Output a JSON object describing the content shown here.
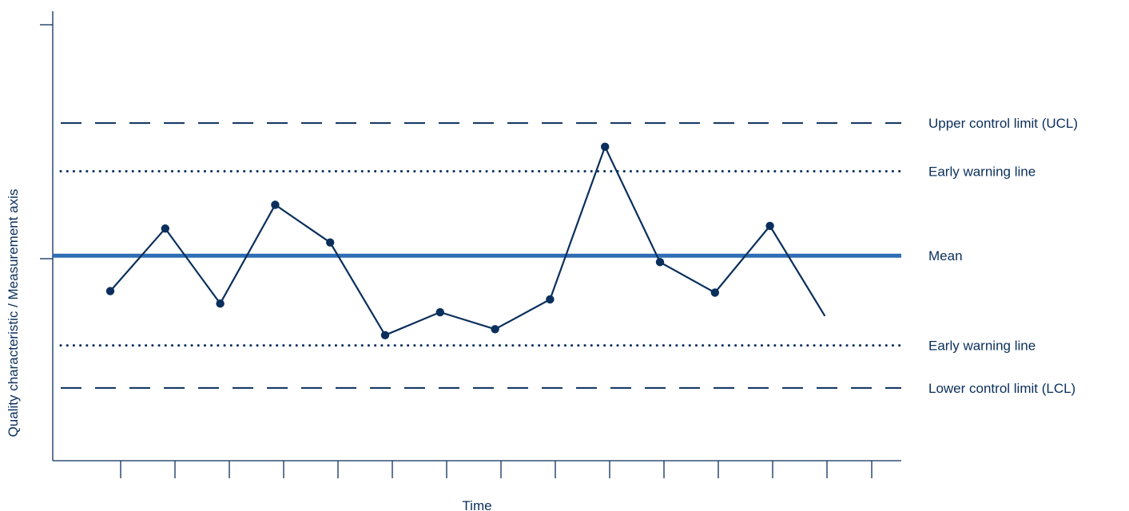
{
  "chart_data": {
    "type": "line",
    "title": "",
    "xlabel": "Time",
    "ylabel": "Quality characteristic / Measurement axis",
    "ylim": [
      0,
      100
    ],
    "grid": false,
    "points": [
      {
        "x": 1,
        "y": 45.0
      },
      {
        "x": 2,
        "y": 61.6
      },
      {
        "x": 3,
        "y": 41.7
      },
      {
        "x": 4,
        "y": 67.9
      },
      {
        "x": 5,
        "y": 57.9
      },
      {
        "x": 6,
        "y": 33.3
      },
      {
        "x": 7,
        "y": 39.4
      },
      {
        "x": 8,
        "y": 34.9
      },
      {
        "x": 9,
        "y": 42.8
      },
      {
        "x": 10,
        "y": 83.3
      },
      {
        "x": 11,
        "y": 52.7
      },
      {
        "x": 12,
        "y": 44.6
      },
      {
        "x": 13,
        "y": 62.3
      }
    ],
    "line_end": {
      "x": 14,
      "y": 38.4
    },
    "reference_lines": [
      {
        "label": "Upper control limit (UCL)",
        "y": 89.6,
        "style": "dashed"
      },
      {
        "label": "Early warning line",
        "y": 76.8,
        "style": "dotted"
      },
      {
        "label": "Mean",
        "y": 54.4,
        "style": "solid"
      },
      {
        "label": "Early warning line",
        "y": 30.6,
        "style": "dotted"
      },
      {
        "label": "Lower control limit (LCL)",
        "y": 19.3,
        "style": "dashed"
      }
    ],
    "x_ticks_count": 15,
    "colors": {
      "data": "#0a2f5c",
      "mean": "#2e6db4",
      "limits": "#0a2f5c",
      "text": "#0a2f5c"
    }
  }
}
